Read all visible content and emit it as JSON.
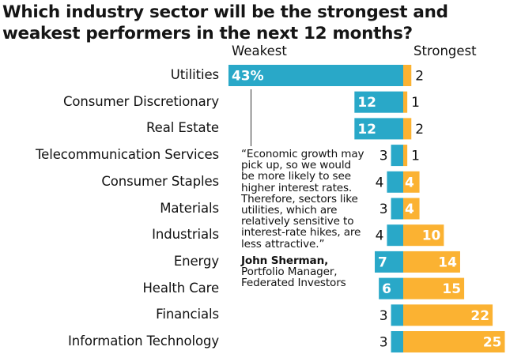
{
  "chart_data": {
    "type": "bar",
    "orientation": "horizontal-diverging",
    "title_lines": [
      "Which industry sector will be the strongest and",
      "weakest performers in the next 12 months?"
    ],
    "series_headers": {
      "weakest": "Weakest",
      "strongest": "Strongest"
    },
    "categories": [
      "Utilities",
      "Consumer Discretionary",
      "Real Estate",
      "Telecommunication Services",
      "Consumer Staples",
      "Materials",
      "Industrials",
      "Energy",
      "Health Care",
      "Financials",
      "Information Technology"
    ],
    "series": [
      {
        "name": "Weakest",
        "color": "#29a8c8",
        "values": [
          43,
          12,
          12,
          3,
          4,
          3,
          4,
          7,
          6,
          3,
          3
        ],
        "labels": [
          "43%",
          "12",
          "12",
          "3",
          "4",
          "3",
          "4",
          "7",
          "6",
          "3",
          "3"
        ]
      },
      {
        "name": "Strongest",
        "color": "#fbb232",
        "values": [
          2,
          1,
          2,
          1,
          4,
          4,
          10,
          14,
          15,
          22,
          25
        ],
        "labels": [
          "2",
          "1",
          "2",
          "1",
          "4",
          "4",
          "10",
          "14",
          "15",
          "22",
          "25"
        ]
      }
    ],
    "unit": "percent",
    "xlabel": "",
    "ylabel": "",
    "grid": false,
    "legend": "top"
  },
  "quote": {
    "lines": [
      "“Economic growth may",
      "pick up, so we would",
      "be more likely to see",
      "higher interest rates.",
      "Therefore, sectors like",
      "utilities, which are",
      "relatively sensitive to",
      "interest-rate hikes, are",
      "less attractive.”"
    ],
    "attribution_name": "John Sherman,",
    "attribution_title": "Portfolio Manager,",
    "attribution_org": "Federated Investors"
  }
}
